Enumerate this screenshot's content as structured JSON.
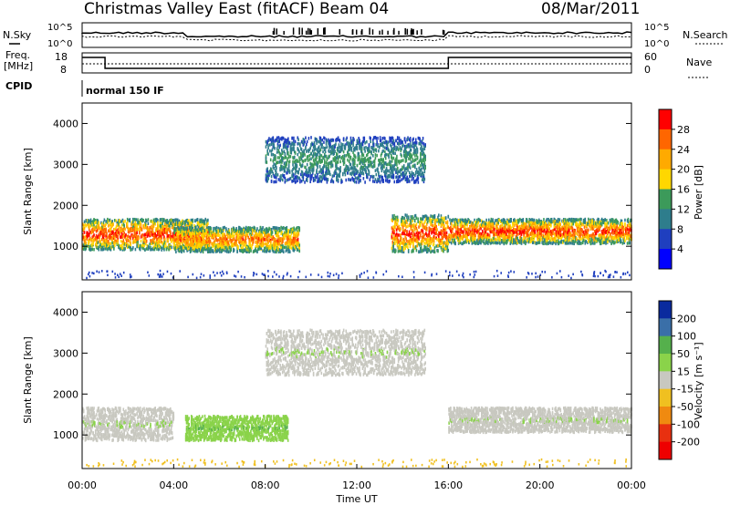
{
  "header": {
    "station": "Christmas Valley East (fitACF)",
    "beam": "Beam 04",
    "date": "08/Mar/2011"
  },
  "strip": {
    "nsky_label": "N.Sky",
    "nsky_ticks": [
      "10^5",
      "10^0"
    ],
    "nsearch_label": "N.Search",
    "nsearch_ticks": [
      "10^5",
      "10^0"
    ],
    "freq_label": "Freq.",
    "freq_unit": "[MHz]",
    "freq_ticks": [
      "18",
      "8"
    ],
    "nave_label": "Nave",
    "nave_ticks": [
      "60",
      "0"
    ],
    "cpid_label": "CPID",
    "cpid_text": "normal 150 IF"
  },
  "axes": {
    "ylabel": "Slant Range [km]",
    "xlabel": "Time UT",
    "y_ticks": [
      "4000",
      "3000",
      "2000",
      "1000"
    ],
    "x_ticks": [
      "00:00",
      "04:00",
      "08:00",
      "12:00",
      "16:00",
      "20:00",
      "00:00"
    ]
  },
  "colorbars": {
    "power": {
      "label": "Power [dB]",
      "ticks": [
        "28",
        "24",
        "20",
        "16",
        "12",
        "8",
        "4"
      ],
      "colors": [
        "#ff0000",
        "#ff6600",
        "#ffaa00",
        "#ffd700",
        "#3c9a5a",
        "#2e7d8c",
        "#1f3fbf",
        "#0000ff"
      ]
    },
    "velocity": {
      "label": "Velocity [m s⁻¹]",
      "ticks": [
        "200",
        "100",
        "50",
        "15",
        "-15",
        "-50",
        "-100",
        "-200"
      ],
      "colors": [
        "#0a2a9e",
        "#3a6fa8",
        "#55b04c",
        "#8ad34a",
        "#c8c8c0",
        "#f0c020",
        "#f08a10",
        "#e83010",
        "#ee0000"
      ]
    }
  },
  "chart_data": [
    {
      "type": "heatmap",
      "title": "Power",
      "ylabel": "Slant Range [km]",
      "xlabel": "Time UT",
      "xlim": [
        "00:00",
        "24:00"
      ],
      "ylim": [
        180,
        4500
      ],
      "colorbar": "Power [dB]",
      "features": [
        {
          "time": [
            0.0,
            5.5
          ],
          "range": [
            950,
            1700
          ],
          "power_db": [
            8,
            28
          ]
        },
        {
          "time": [
            4.0,
            9.5
          ],
          "range": [
            900,
            1500
          ],
          "power_db": [
            8,
            24
          ]
        },
        {
          "time": [
            8.0,
            15.0
          ],
          "range": [
            2600,
            3700
          ],
          "power_db": [
            4,
            12
          ]
        },
        {
          "time": [
            13.5,
            16.0
          ],
          "range": [
            900,
            1800
          ],
          "power_db": [
            8,
            28
          ]
        },
        {
          "time": [
            16.0,
            24.0
          ],
          "range": [
            1100,
            1700
          ],
          "power_db": [
            8,
            28
          ]
        }
      ]
    },
    {
      "type": "heatmap",
      "title": "Velocity",
      "ylabel": "Slant Range [km]",
      "xlabel": "Time UT",
      "xlim": [
        "00:00",
        "24:00"
      ],
      "ylim": [
        180,
        4500
      ],
      "colorbar": "Velocity [m s-1]",
      "features": [
        {
          "time": [
            0.0,
            4.0
          ],
          "range": [
            900,
            1700
          ],
          "velocity": [
            -15,
            15
          ]
        },
        {
          "time": [
            4.5,
            9.0
          ],
          "range": [
            900,
            1500
          ],
          "velocity": [
            15,
            50
          ]
        },
        {
          "time": [
            8.0,
            15.0
          ],
          "range": [
            2500,
            3600
          ],
          "velocity": [
            -15,
            15
          ]
        },
        {
          "time": [
            16.0,
            24.0
          ],
          "range": [
            1100,
            1700
          ],
          "velocity": [
            -15,
            15
          ]
        }
      ]
    }
  ]
}
